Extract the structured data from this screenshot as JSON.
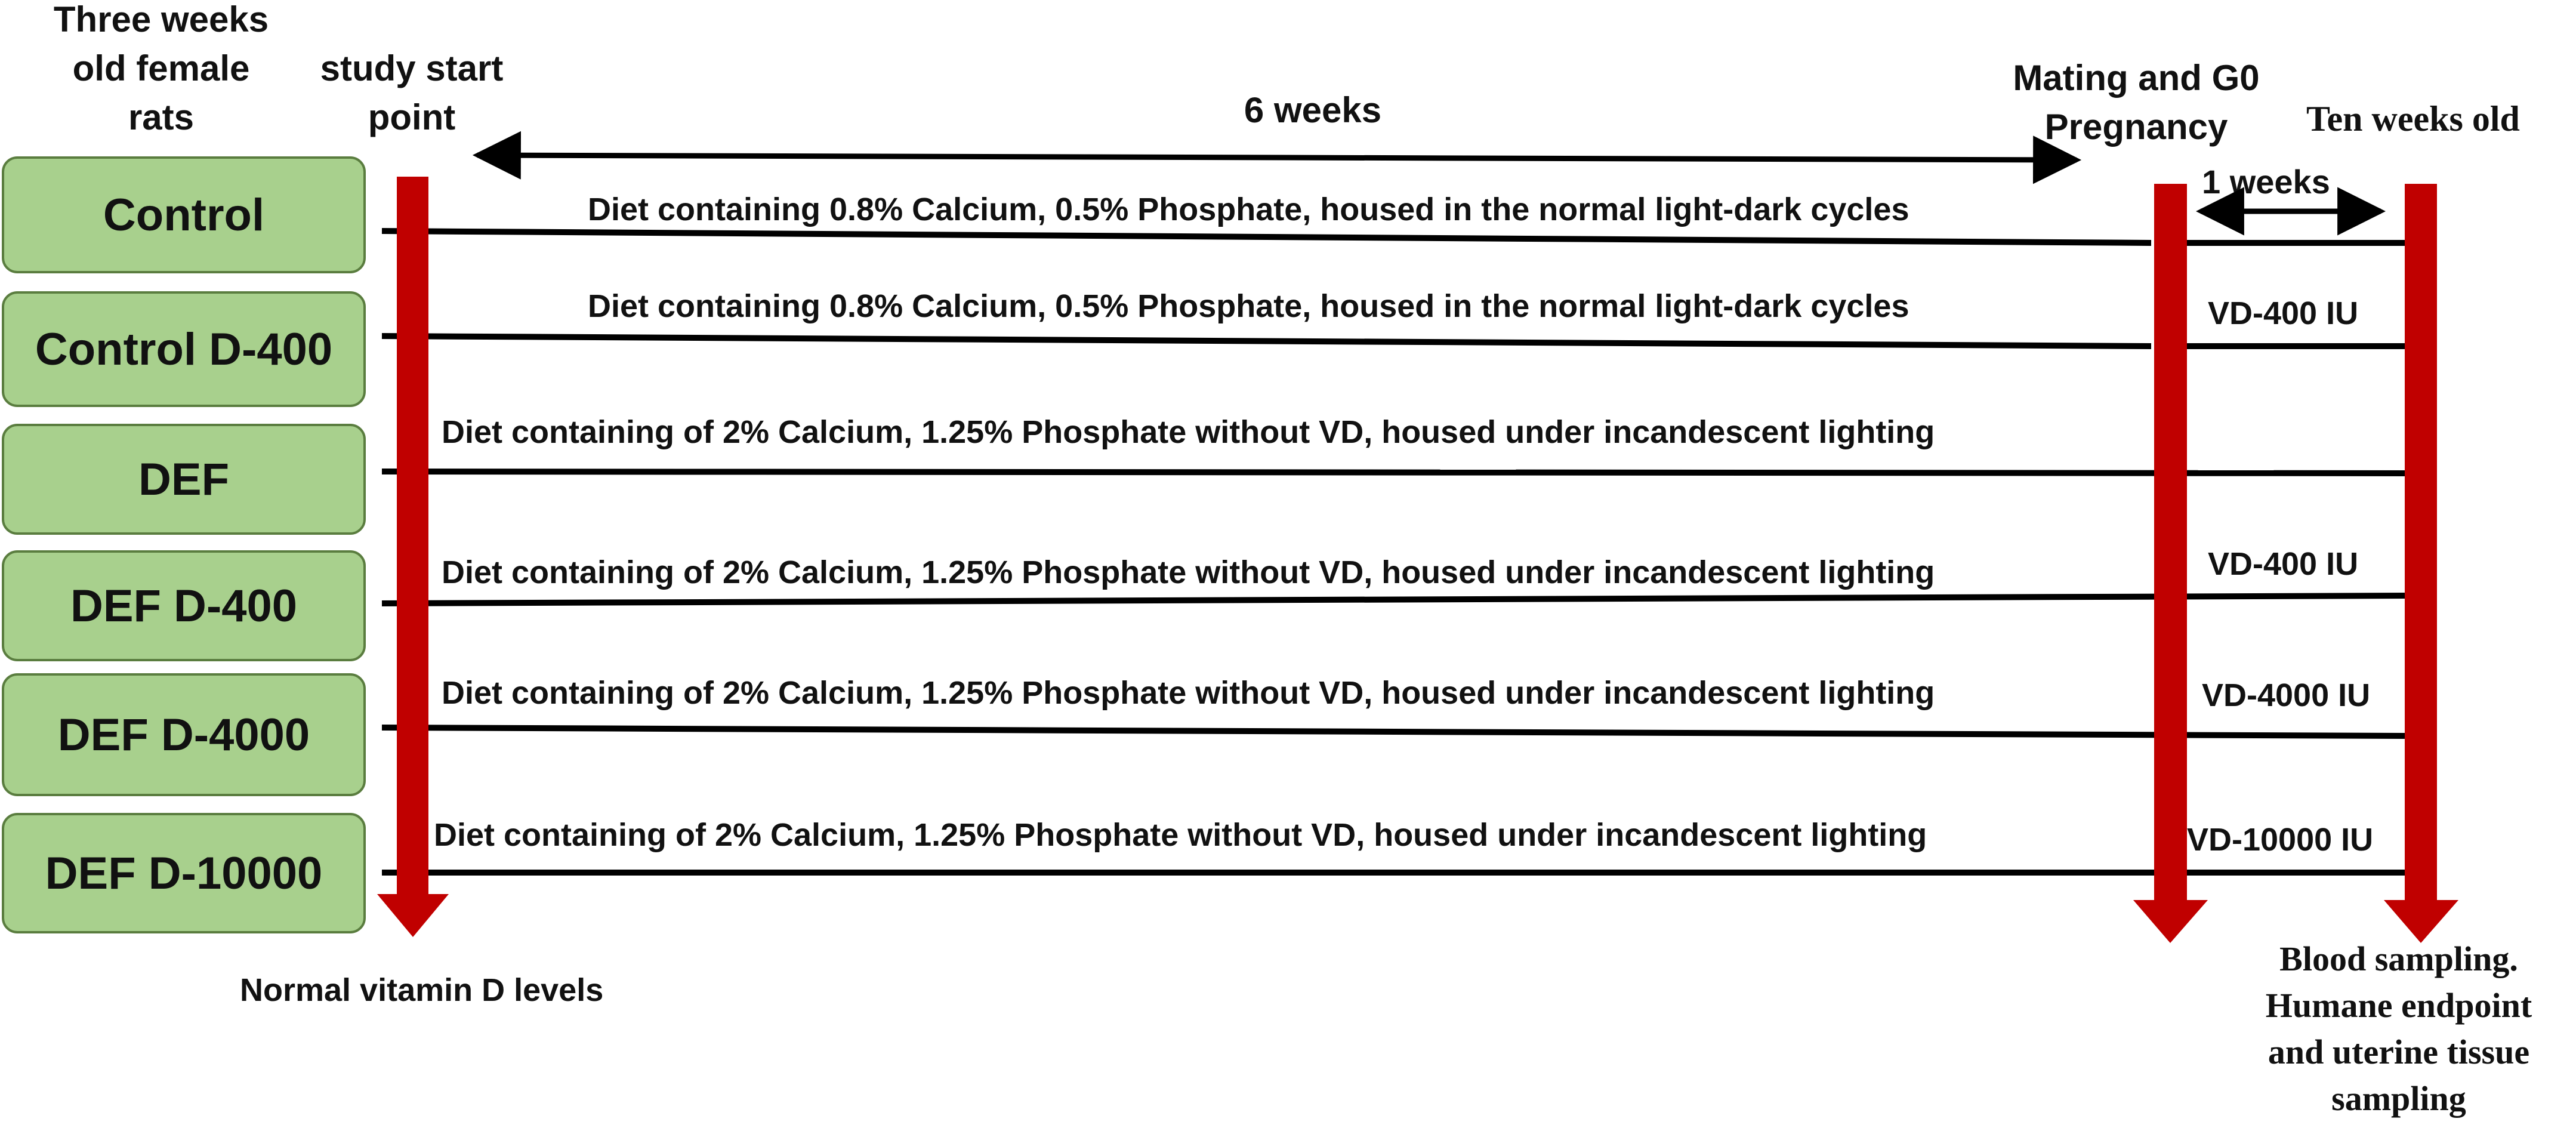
{
  "header": {
    "three_weeks": [
      "Three weeks",
      "old female",
      "rats"
    ],
    "study_start": [
      "study start",
      "point"
    ],
    "six_weeks": "6 weeks",
    "mating": [
      "Mating and G0",
      "Pregnancy"
    ],
    "ten_weeks": "Ten weeks old",
    "one_weeks": "1 weeks"
  },
  "groups": [
    {
      "name": "Control",
      "diet": "Diet containing 0.8% Calcium, 0.5% Phosphate, housed in the normal light-dark cycles",
      "dose": ""
    },
    {
      "name": "Control D-400",
      "diet": "Diet containing 0.8% Calcium, 0.5% Phosphate, housed in the normal light-dark cycles",
      "dose": "VD-400 IU"
    },
    {
      "name": "DEF",
      "diet": "Diet containing of 2% Calcium, 1.25% Phosphate without VD, housed under incandescent lighting",
      "dose": ""
    },
    {
      "name": "DEF D-400",
      "diet": "Diet containing of 2% Calcium, 1.25% Phosphate without VD, housed under incandescent lighting",
      "dose": "VD-400 IU"
    },
    {
      "name": "DEF D-4000",
      "diet": "Diet containing of 2% Calcium, 1.25% Phosphate without VD, housed under incandescent lighting",
      "dose": "VD-4000 IU"
    },
    {
      "name": "DEF D-10000",
      "diet": "Diet containing of 2% Calcium, 1.25% Phosphate without VD, housed under incandescent lighting",
      "dose": "VD-10000 IU"
    }
  ],
  "footer": {
    "normal_vd": "Normal vitamin D levels",
    "sampling": [
      "Blood sampling.",
      "Humane endpoint",
      "and uterine tissue",
      "sampling"
    ]
  },
  "colors": {
    "arrow_red": "#c00000",
    "box_fill": "#a8d08d",
    "box_border": "#5a7d3f"
  }
}
